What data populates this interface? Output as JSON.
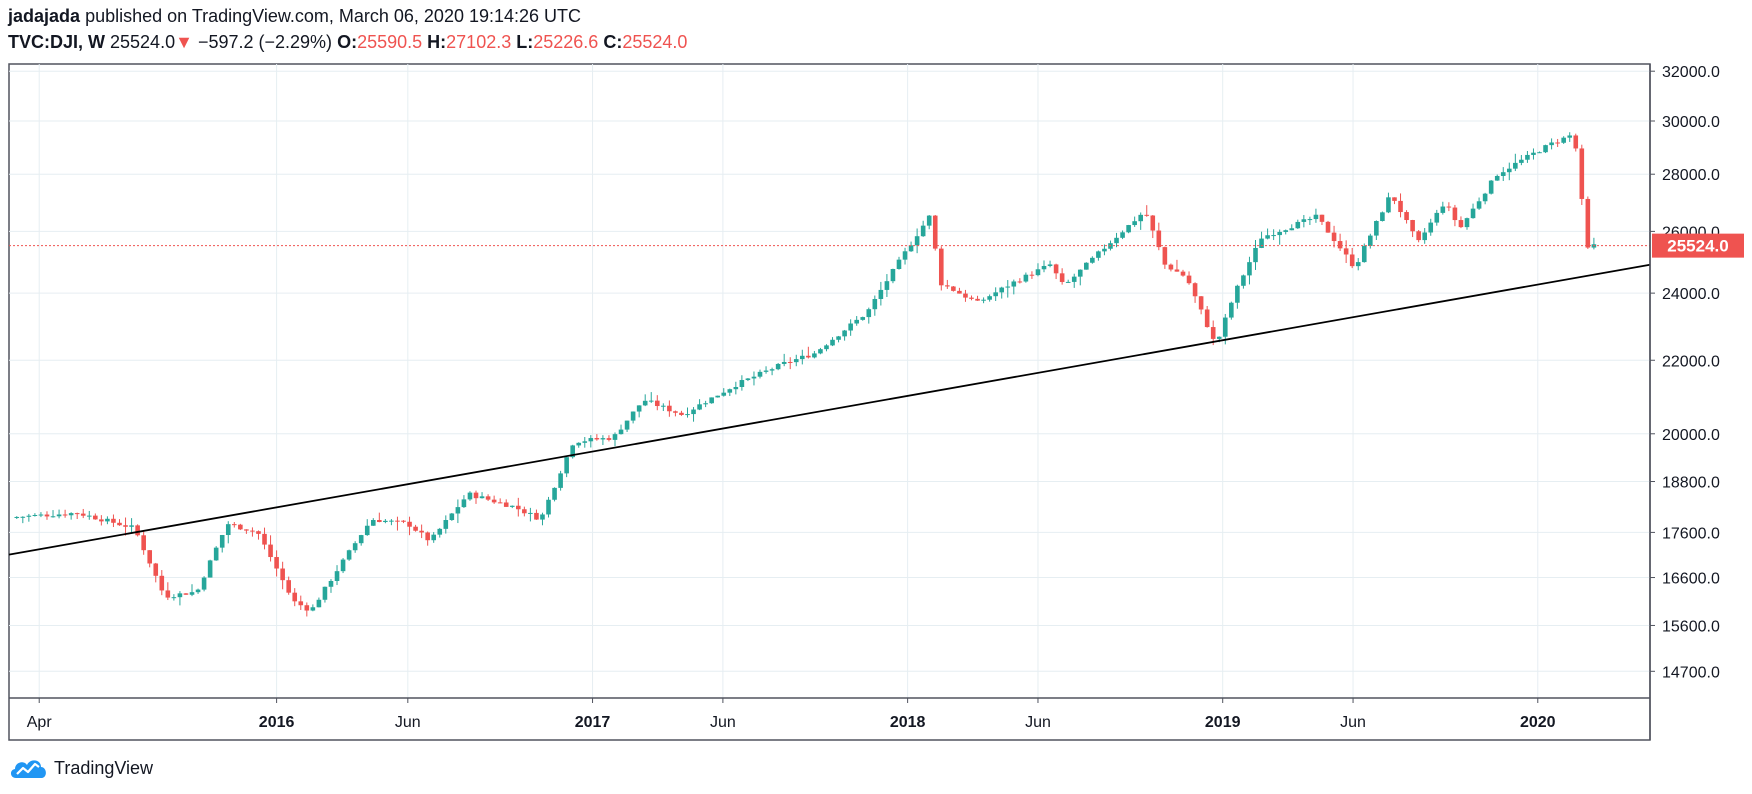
{
  "header": {
    "author": "jadajada",
    "published": "published on TradingView.com, March 06, 2020 19:14:26 UTC",
    "symbol": "TVC:DJI, W",
    "last": "25524.0",
    "change": "−597.2 (−2.29%)",
    "o_label": "O:",
    "o_value": "25590.5",
    "h_label": "H:",
    "h_value": "27102.3",
    "l_label": "L:",
    "l_value": "25226.6",
    "c_label": "C:",
    "c_value": "25524.0"
  },
  "branding": {
    "logo_text": "TradingView",
    "logo_icon": "tradingview-cloud-icon"
  },
  "colors": {
    "up": "#26a69a",
    "down": "#ef5350",
    "grid": "#e6eef2",
    "axis": "#50535e",
    "trend": "#000000"
  },
  "chart_data": {
    "type": "candlestick",
    "symbol": "TVC:DJI",
    "interval": "W",
    "y_scale": "log",
    "ylim": [
      14200,
      32300
    ],
    "y_ticks": [
      "32000.0",
      "30000.0",
      "28000.0",
      "26000.0",
      "24000.0",
      "22000.0",
      "20000.0",
      "18800.0",
      "17600.0",
      "16600.0",
      "15600.0",
      "14700.0"
    ],
    "x_ticks": [
      {
        "label": "Apr",
        "year": false,
        "date": "2015-04-01"
      },
      {
        "label": "2016",
        "year": true,
        "date": "2016-01-01"
      },
      {
        "label": "Jun",
        "year": false,
        "date": "2016-06-01"
      },
      {
        "label": "2017",
        "year": true,
        "date": "2017-01-01"
      },
      {
        "label": "Jun",
        "year": false,
        "date": "2017-06-01"
      },
      {
        "label": "2018",
        "year": true,
        "date": "2018-01-01"
      },
      {
        "label": "Jun",
        "year": false,
        "date": "2018-06-01"
      },
      {
        "label": "2019",
        "year": true,
        "date": "2019-01-01"
      },
      {
        "label": "Jun",
        "year": false,
        "date": "2019-06-01"
      },
      {
        "label": "2020",
        "year": true,
        "date": "2020-01-01"
      }
    ],
    "xlim": [
      "2015-02-25",
      "2020-05-10"
    ],
    "last_price": 25524.0,
    "last_price_label": "25524.0",
    "trendline": [
      {
        "date": "2015-02-25",
        "value": 17100
      },
      {
        "date": "2020-05-10",
        "value": 24900
      }
    ],
    "anchors": [
      [
        "2015-03-01",
        17950
      ],
      [
        "2015-05-15",
        18050
      ],
      [
        "2015-07-20",
        17700
      ],
      [
        "2015-08-24",
        16200
      ],
      [
        "2015-10-01",
        16300
      ],
      [
        "2015-11-05",
        17800
      ],
      [
        "2015-12-10",
        17600
      ],
      [
        "2016-01-20",
        16100
      ],
      [
        "2016-02-10",
        15900
      ],
      [
        "2016-04-20",
        17900
      ],
      [
        "2016-06-01",
        17800
      ],
      [
        "2016-06-27",
        17400
      ],
      [
        "2016-08-10",
        18500
      ],
      [
        "2016-10-01",
        18200
      ],
      [
        "2016-11-02",
        17900
      ],
      [
        "2016-12-10",
        19800
      ],
      [
        "2017-01-25",
        19900
      ],
      [
        "2017-03-01",
        20900
      ],
      [
        "2017-04-15",
        20500
      ],
      [
        "2017-06-15",
        21300
      ],
      [
        "2017-08-10",
        21900
      ],
      [
        "2017-09-15",
        22200
      ],
      [
        "2017-11-15",
        23400
      ],
      [
        "2018-01-26",
        26500
      ],
      [
        "2018-02-09",
        24300
      ],
      [
        "2018-03-23",
        23700
      ],
      [
        "2018-05-01",
        24300
      ],
      [
        "2018-06-15",
        24900
      ],
      [
        "2018-07-01",
        24200
      ],
      [
        "2018-08-15",
        25400
      ],
      [
        "2018-10-03",
        26700
      ],
      [
        "2018-10-26",
        24900
      ],
      [
        "2018-11-20",
        24500
      ],
      [
        "2018-12-24",
        22400
      ],
      [
        "2019-01-15",
        24000
      ],
      [
        "2019-02-15",
        25800
      ],
      [
        "2019-04-20",
        26500
      ],
      [
        "2019-06-03",
        24800
      ],
      [
        "2019-07-15",
        27300
      ],
      [
        "2019-08-15",
        25600
      ],
      [
        "2019-09-15",
        27000
      ],
      [
        "2019-10-03",
        26100
      ],
      [
        "2019-11-15",
        28000
      ],
      [
        "2020-01-15",
        29100
      ],
      [
        "2020-02-12",
        29500
      ],
      [
        "2020-02-27",
        25400
      ],
      [
        "2020-03-06",
        25524
      ]
    ]
  }
}
